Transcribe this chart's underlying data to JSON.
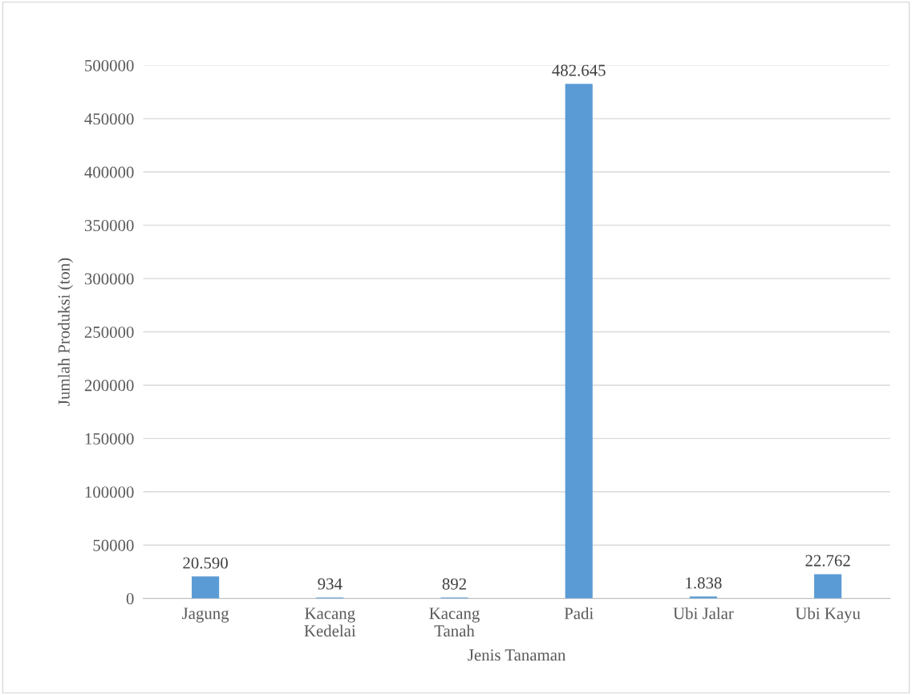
{
  "chart_data": {
    "type": "bar",
    "xlabel": "Jenis Tanaman",
    "ylabel": "Jumlah Produksi (ton)",
    "categories": [
      "Jagung",
      "Kacang\nKedelai",
      "Kacang\nTanah",
      "Padi",
      "Ubi Jalar",
      "Ubi Kayu"
    ],
    "values": [
      20590,
      934,
      892,
      482645,
      1838,
      22762
    ],
    "value_labels": [
      "20.590",
      "934",
      "892",
      "482.645",
      "1.838",
      "22.762"
    ],
    "color": "#5b9bd5",
    "ylim": [
      0,
      500000
    ],
    "yticks": [
      0,
      50000,
      100000,
      150000,
      200000,
      250000,
      300000,
      350000,
      400000,
      450000,
      500000
    ],
    "grid": "y",
    "legend": false
  }
}
